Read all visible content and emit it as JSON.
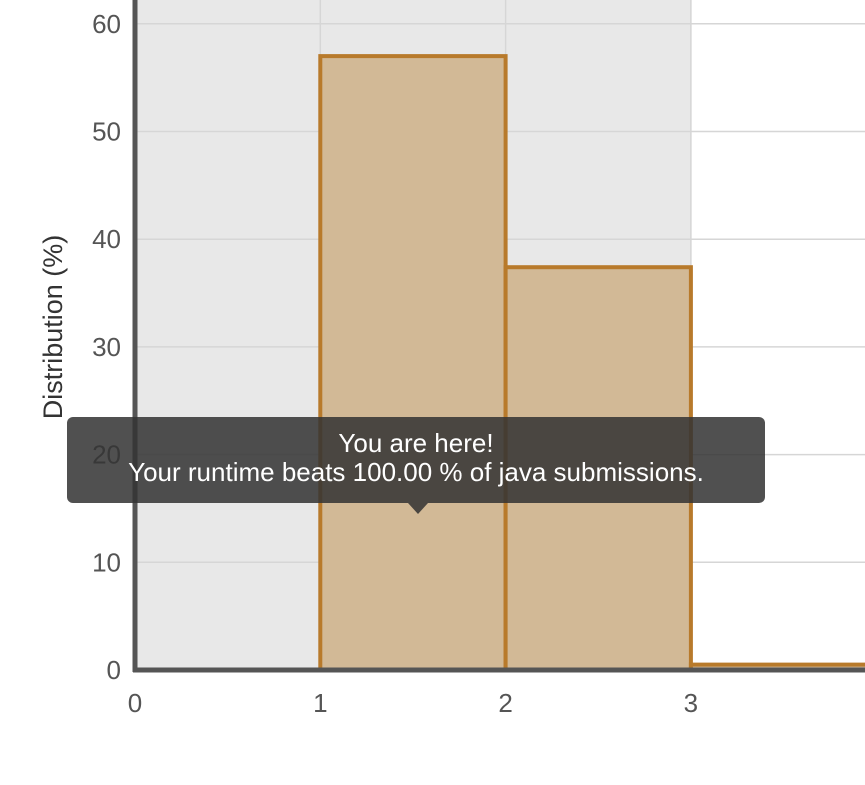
{
  "chart_data": {
    "type": "bar",
    "ylabel": "Distribution (%)",
    "xlabel": "",
    "x_ticks": [
      "0",
      "1",
      "2",
      "3"
    ],
    "y_ticks": [
      "0",
      "10",
      "20",
      "30",
      "40",
      "50",
      "60"
    ],
    "ylim": [
      0,
      62
    ],
    "xlim": [
      0,
      4
    ],
    "bins": [
      {
        "start": 1,
        "end": 2,
        "value": 57.0
      },
      {
        "start": 2,
        "end": 3,
        "value": 37.4
      },
      {
        "start": 3,
        "end": 4,
        "value": 0.5
      }
    ],
    "highlight_range": [
      0,
      3
    ],
    "grid": true,
    "colors": {
      "bar_fill": "#d2b996",
      "bar_stroke": "#b87a2b",
      "highlight_band": "#e8e8e8",
      "axis": "#555555",
      "grid": "#d6d6d6"
    }
  },
  "tooltip": {
    "line1": "You are here!",
    "line2": "Your runtime beats 100.00 % of java submissions."
  }
}
